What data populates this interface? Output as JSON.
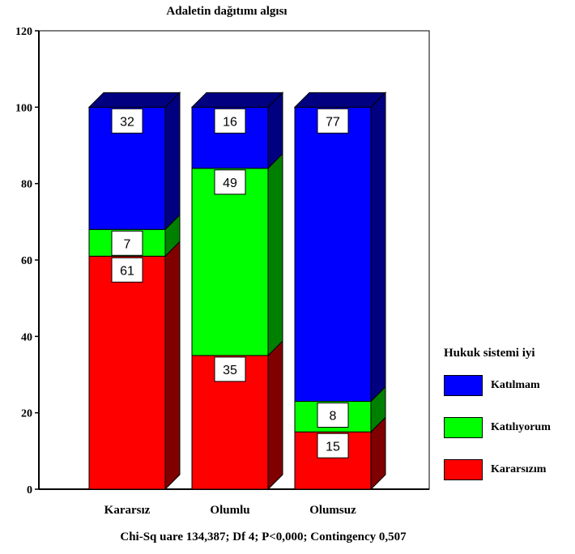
{
  "chart_data": {
    "type": "bar",
    "stacked": true,
    "three_d": true,
    "title": "Adaletin dağıtımı algısı",
    "categories": [
      "Kararsız",
      "Olumlu",
      "Olumsuz"
    ],
    "series": [
      {
        "name": "Kararsızım",
        "values": [
          61,
          35,
          15
        ],
        "labels": [
          "61",
          "35",
          "15"
        ],
        "color": "#ff0000",
        "side": "#800000"
      },
      {
        "name": "Katılıyorum",
        "values": [
          7,
          49,
          8
        ],
        "labels": [
          "7",
          "49",
          "8"
        ],
        "color": "#00ff00",
        "side": "#008000"
      },
      {
        "name": "Katılmam",
        "values": [
          32,
          16,
          77
        ],
        "labels": [
          "32",
          "16",
          "77"
        ],
        "color": "#0000ff",
        "side": "#000080"
      }
    ],
    "ylim": [
      0,
      120
    ],
    "yticks": [
      "0",
      "20",
      "40",
      "60",
      "80",
      "100",
      "120"
    ],
    "grid": false,
    "legend": {
      "title": "Hukuk sistemi iyi",
      "placement": "right",
      "order": [
        "Katılmam",
        "Katılıyorum",
        "Kararsızım"
      ]
    }
  },
  "footer": "Chi-Sq uare 134,387; Df 4; P<0,000; Contingency 0,507",
  "legend_entries": [
    {
      "label": "Katılmam",
      "color": "#0000ff"
    },
    {
      "label": "Katılıyorum",
      "color": "#00ff00"
    },
    {
      "label": "Kararsızım",
      "color": "#ff0000"
    }
  ]
}
